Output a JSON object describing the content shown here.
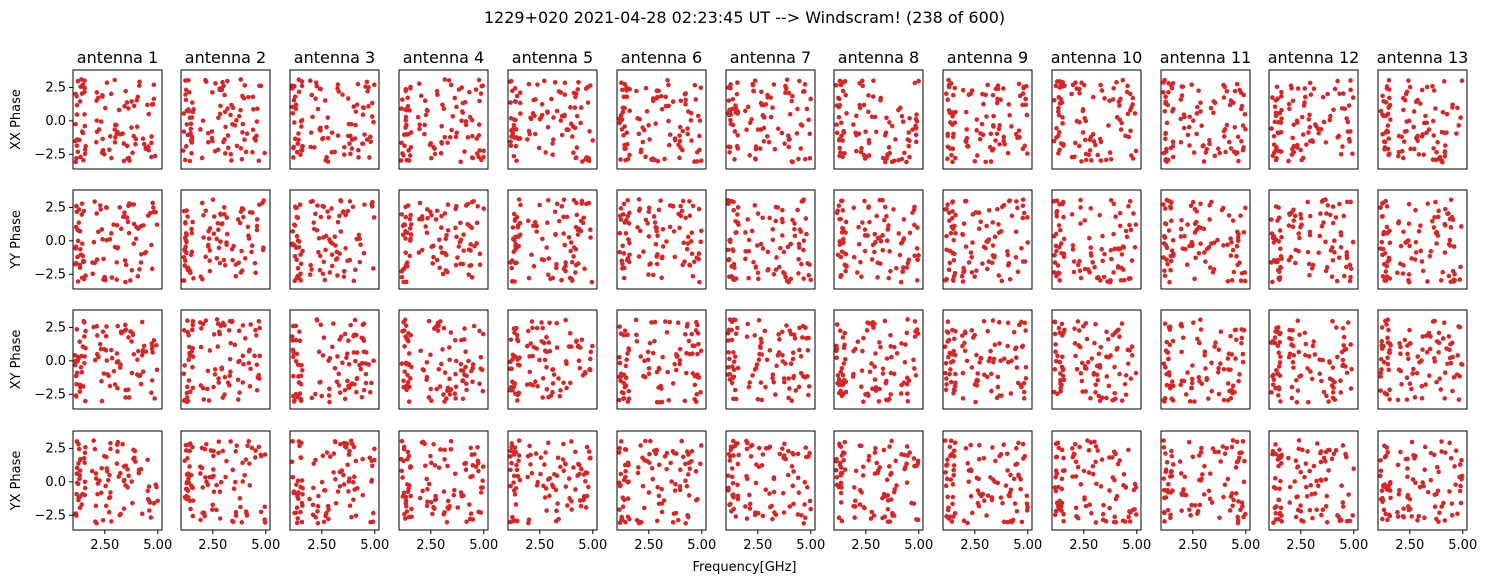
{
  "suptitle": "1229+020 2021-04-28 02:23:45 UT --> Windscram! (238 of 600)",
  "xlabel": "Frequency[GHz]",
  "chart_data": {
    "type": "scatter",
    "title": "1229+020 2021-04-28 02:23:45 UT --> Windscram! (238 of 600)",
    "xlabel": "Frequency[GHz]",
    "columns": [
      "antenna 1",
      "antenna 2",
      "antenna 3",
      "antenna 4",
      "antenna 5",
      "antenna 6",
      "antenna 7",
      "antenna 8",
      "antenna 9",
      "antenna 10",
      "antenna 11",
      "antenna 12",
      "antenna 13"
    ],
    "rows": [
      "XX Phase",
      "YY Phase",
      "XY Phase",
      "YX Phase"
    ],
    "xlim": [
      1.0,
      5.2
    ],
    "ylim": [
      -3.6,
      3.8
    ],
    "xticks": [
      2.5,
      5.0
    ],
    "xtick_labels": [
      "2.50",
      "5.00"
    ],
    "yticks": [
      2.5,
      0.0,
      -2.5
    ],
    "ytick_labels": [
      "2.5",
      "0.0",
      "−2.5"
    ],
    "marker_color": "#d62728",
    "points_per_panel": 100,
    "grid": false,
    "description_of_values": "Phase (radians) vs frequency (GHz); phases scattered uniformly between about -3.14 and 3.14, denser at low frequency (~1.1–1.6 GHz) and sparser from 2–5 GHz."
  }
}
